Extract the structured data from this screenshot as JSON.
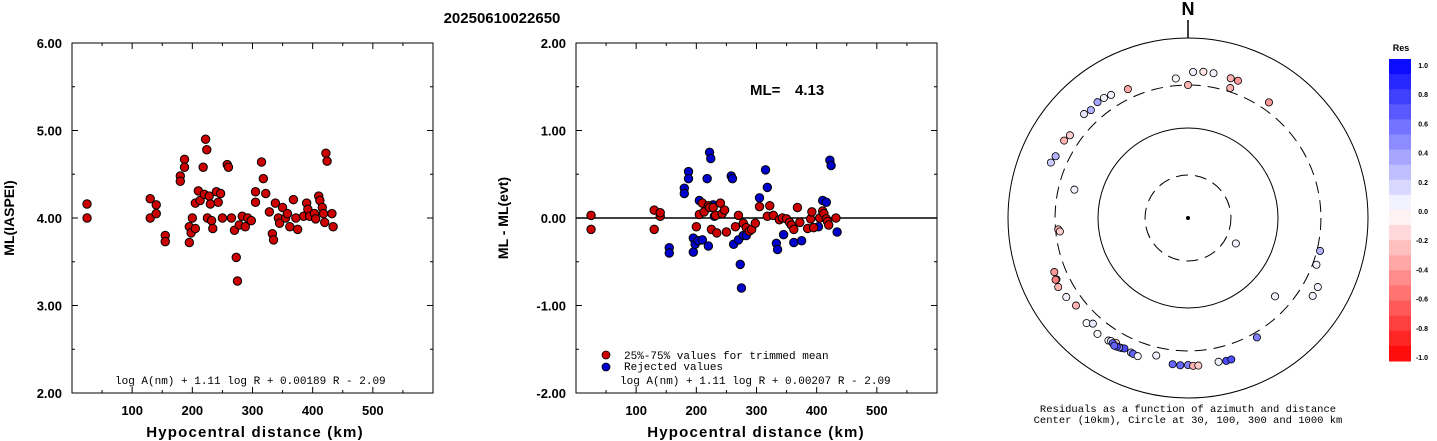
{
  "title": "20250610022650",
  "chart_data": [
    {
      "type": "scatter",
      "xlabel": "Hypocentral distance (km)",
      "ylabel": "ML(IASPEI)",
      "xlim": [
        0,
        600
      ],
      "ylim": [
        2.0,
        6.0
      ],
      "xticks": [
        "100",
        "200",
        "300",
        "400",
        "500"
      ],
      "yticks": [
        "2.00",
        "3.00",
        "4.00",
        "5.00",
        "6.00"
      ],
      "formula": "log A(nm) + 1.11 log R + 0.00189 R - 2.09",
      "points": [
        [
          25,
          4.16
        ],
        [
          25,
          4.0
        ],
        [
          130,
          4.22
        ],
        [
          130,
          4.0
        ],
        [
          140,
          4.15
        ],
        [
          140,
          4.05
        ],
        [
          155,
          3.8
        ],
        [
          155,
          3.73
        ],
        [
          180,
          4.48
        ],
        [
          180,
          4.42
        ],
        [
          187,
          4.67
        ],
        [
          187,
          4.58
        ],
        [
          195,
          3.9
        ],
        [
          195,
          3.72
        ],
        [
          198,
          3.83
        ],
        [
          200,
          4.0
        ],
        [
          205,
          4.17
        ],
        [
          205,
          3.88
        ],
        [
          210,
          4.31
        ],
        [
          213,
          4.2
        ],
        [
          218,
          4.58
        ],
        [
          220,
          4.27
        ],
        [
          222,
          4.9
        ],
        [
          224,
          4.78
        ],
        [
          225,
          4.0
        ],
        [
          228,
          4.25
        ],
        [
          230,
          4.16
        ],
        [
          232,
          3.97
        ],
        [
          234,
          3.88
        ],
        [
          240,
          4.3
        ],
        [
          243,
          4.18
        ],
        [
          247,
          4.28
        ],
        [
          250,
          4.0
        ],
        [
          258,
          4.61
        ],
        [
          260,
          4.58
        ],
        [
          265,
          4.0
        ],
        [
          270,
          3.86
        ],
        [
          273,
          3.55
        ],
        [
          275,
          3.28
        ],
        [
          278,
          3.92
        ],
        [
          283,
          4.02
        ],
        [
          288,
          3.9
        ],
        [
          292,
          4.0
        ],
        [
          298,
          3.97
        ],
        [
          305,
          4.3
        ],
        [
          305,
          4.18
        ],
        [
          315,
          4.64
        ],
        [
          318,
          4.45
        ],
        [
          322,
          4.28
        ],
        [
          328,
          4.07
        ],
        [
          333,
          3.82
        ],
        [
          335,
          3.75
        ],
        [
          338,
          4.17
        ],
        [
          343,
          4.0
        ],
        [
          345,
          3.94
        ],
        [
          350,
          4.12
        ],
        [
          355,
          4.0
        ],
        [
          358,
          4.05
        ],
        [
          362,
          3.9
        ],
        [
          368,
          4.21
        ],
        [
          372,
          4.0
        ],
        [
          375,
          3.87
        ],
        [
          385,
          4.02
        ],
        [
          390,
          4.17
        ],
        [
          392,
          4.1
        ],
        [
          395,
          4.02
        ],
        [
          403,
          4.05
        ],
        [
          405,
          3.99
        ],
        [
          410,
          4.25
        ],
        [
          412,
          4.2
        ],
        [
          416,
          4.12
        ],
        [
          418,
          4.05
        ],
        [
          420,
          3.95
        ],
        [
          422,
          4.74
        ],
        [
          424,
          4.65
        ],
        [
          432,
          4.05
        ],
        [
          434,
          3.9
        ]
      ]
    },
    {
      "type": "scatter",
      "xlabel": "Hypocentral distance (km)",
      "ylabel": "ML - ML(evt)",
      "xlim": [
        0,
        600
      ],
      "ylim": [
        -2.0,
        2.0
      ],
      "xticks": [
        "100",
        "200",
        "300",
        "400",
        "500"
      ],
      "yticks": [
        "-2.00",
        "-1.00",
        "0.00",
        "1.00",
        "2.00"
      ],
      "ml_label": "ML=",
      "ml_value": "4.13",
      "formula": "log A(nm) + 1.11 log R + 0.00207 R - 2.09",
      "legend": [
        "25%-75% values for trimmed mean",
        "Rejected values"
      ],
      "colors": {
        "trimmed": "#cc0000",
        "rejected": "#0000cc"
      },
      "trimmed_points": [
        [
          25,
          0.03
        ],
        [
          25,
          -0.13
        ],
        [
          130,
          0.09
        ],
        [
          130,
          -0.13
        ],
        [
          140,
          0.02
        ],
        [
          140,
          0.06
        ],
        [
          200,
          -0.1
        ],
        [
          205,
          0.04
        ],
        [
          210,
          0.17
        ],
        [
          213,
          0.07
        ],
        [
          220,
          0.14
        ],
        [
          222,
          0.12
        ],
        [
          225,
          -0.13
        ],
        [
          228,
          0.12
        ],
        [
          232,
          0.03
        ],
        [
          234,
          -0.17
        ],
        [
          240,
          0.17
        ],
        [
          243,
          0.05
        ],
        [
          247,
          0.09
        ],
        [
          250,
          -0.16
        ],
        [
          265,
          -0.1
        ],
        [
          270,
          0.03
        ],
        [
          278,
          -0.06
        ],
        [
          283,
          -0.11
        ],
        [
          288,
          -0.15
        ],
        [
          292,
          -0.13
        ],
        [
          298,
          -0.06
        ],
        [
          305,
          0.13
        ],
        [
          318,
          0.02
        ],
        [
          322,
          0.14
        ],
        [
          328,
          0.03
        ],
        [
          338,
          -0.02
        ],
        [
          343,
          0.0
        ],
        [
          350,
          -0.01
        ],
        [
          355,
          -0.05
        ],
        [
          358,
          -0.08
        ],
        [
          362,
          -0.13
        ],
        [
          368,
          0.12
        ],
        [
          372,
          -0.05
        ],
        [
          385,
          -0.12
        ],
        [
          390,
          -0.01
        ],
        [
          392,
          0.07
        ],
        [
          395,
          -0.11
        ],
        [
          405,
          0.0
        ],
        [
          410,
          0.08
        ],
        [
          412,
          0.05
        ],
        [
          416,
          -0.01
        ],
        [
          418,
          -0.04
        ],
        [
          420,
          -0.08
        ],
        [
          432,
          0.0
        ]
      ],
      "rejected_points": [
        [
          155,
          -0.34
        ],
        [
          155,
          -0.4
        ],
        [
          180,
          0.34
        ],
        [
          180,
          0.28
        ],
        [
          187,
          0.53
        ],
        [
          187,
          0.45
        ],
        [
          195,
          -0.23
        ],
        [
          195,
          -0.39
        ],
        [
          198,
          -0.3
        ],
        [
          203,
          -0.26
        ],
        [
          205,
          0.2
        ],
        [
          210,
          -0.25
        ],
        [
          218,
          0.45
        ],
        [
          220,
          -0.32
        ],
        [
          222,
          0.75
        ],
        [
          224,
          0.68
        ],
        [
          228,
          0.15
        ],
        [
          230,
          0.02
        ],
        [
          258,
          0.48
        ],
        [
          260,
          0.45
        ],
        [
          262,
          -0.3
        ],
        [
          270,
          -0.25
        ],
        [
          273,
          -0.53
        ],
        [
          275,
          -0.8
        ],
        [
          278,
          -0.2
        ],
        [
          283,
          -0.2
        ],
        [
          305,
          0.23
        ],
        [
          315,
          0.55
        ],
        [
          318,
          0.35
        ],
        [
          333,
          -0.29
        ],
        [
          335,
          -0.36
        ],
        [
          345,
          -0.19
        ],
        [
          362,
          -0.28
        ],
        [
          375,
          -0.26
        ],
        [
          403,
          -0.1
        ],
        [
          410,
          0.2
        ],
        [
          416,
          0.18
        ],
        [
          422,
          0.66
        ],
        [
          424,
          0.6
        ],
        [
          434,
          -0.16
        ]
      ]
    },
    {
      "type": "scatter",
      "subtype": "polar",
      "north_label": "N",
      "caption_line1": "Residuals as a function of azimuth and distance",
      "caption_line2": "Center (10km), Circle at 30, 100, 300 and 1000 km",
      "rings_km": [
        30,
        100,
        300,
        1000
      ],
      "colorbar": {
        "title": "Res",
        "ticks": [
          "1.0",
          "0.8",
          "0.6",
          "0.4",
          "0.2",
          "0.0",
          "-0.2",
          "-0.4",
          "-0.6",
          "-0.8",
          "-1.0"
        ],
        "max_color": "#0000ff",
        "mid_color": "#ffffff",
        "min_color": "#ff0000"
      },
      "points": [
        [
          10,
          430,
          0.05
        ],
        [
          6,
          430,
          -0.1
        ],
        [
          17,
          420,
          -0.3
        ],
        [
          20,
          420,
          -0.4
        ],
        [
          2,
          420,
          0.05
        ],
        [
          355,
          360,
          0.02
        ],
        [
          0,
          300,
          -0.3
        ],
        [
          18,
          330,
          -0.3
        ],
        [
          35,
          370,
          -0.4
        ],
        [
          335,
          380,
          -0.35
        ],
        [
          328,
          410,
          0.05
        ],
        [
          325,
          425,
          0.05
        ],
        [
          322,
          430,
          0.35
        ],
        [
          318,
          410,
          0.3
        ],
        [
          315,
          430,
          0.1
        ],
        [
          305,
          400,
          -0.2
        ],
        [
          302,
          420,
          -0.3
        ],
        [
          295,
          420,
          0.3
        ],
        [
          292,
          440,
          0.2
        ],
        [
          284,
          200,
          0.05
        ],
        [
          265,
          280,
          -0.3
        ],
        [
          264,
          270,
          -0.2
        ],
        [
          248,
          400,
          -0.4
        ],
        [
          245,
          410,
          -0.2
        ],
        [
          245,
          420,
          -0.5
        ],
        [
          242,
          430,
          -0.3
        ],
        [
          237,
          410,
          0.05
        ],
        [
          232,
          380,
          -0.3
        ],
        [
          224,
          420,
          0.02
        ],
        [
          222,
          380,
          0.1
        ],
        [
          218,
          430,
          0.02
        ],
        [
          213,
          420,
          0.05
        ],
        [
          212,
          410,
          0.1
        ],
        [
          210,
          400,
          -0.2
        ],
        [
          207,
          420,
          0.05
        ],
        [
          206,
          410,
          0.7
        ],
        [
          208,
          425,
          0.5
        ],
        [
          209,
          430,
          0.7
        ],
        [
          211,
          420,
          0.6
        ],
        [
          210,
          435,
          0.6
        ],
        [
          203,
          420,
          0.3
        ],
        [
          202,
          425,
          0.6
        ],
        [
          200,
          430,
          0.05
        ],
        [
          193,
          370,
          0.05
        ],
        [
          186,
          430,
          0.6
        ],
        [
          183,
          435,
          0.6
        ],
        [
          180,
          430,
          0.5
        ],
        [
          178,
          440,
          -0.3
        ],
        [
          176,
          440,
          -0.2
        ],
        [
          168,
          430,
          0.05
        ],
        [
          165,
          440,
          0.7
        ],
        [
          163,
          440,
          0.7
        ],
        [
          150,
          340,
          0.5
        ],
        [
          132,
          200,
          0.05
        ],
        [
          122,
          430,
          0.05
        ],
        [
          118,
          430,
          0.05
        ],
        [
          110,
          330,
          0.05
        ],
        [
          104,
          325,
          0.3
        ],
        [
          118,
          40,
          0.05
        ]
      ]
    }
  ]
}
